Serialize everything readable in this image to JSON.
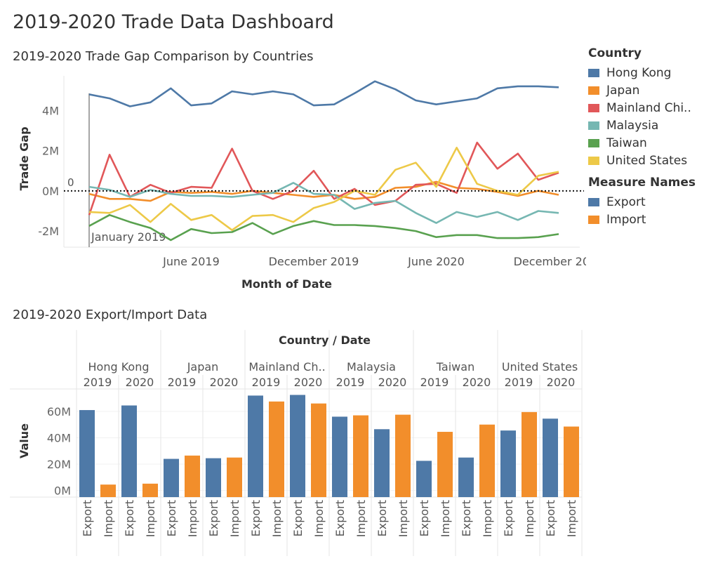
{
  "dashboard": {
    "title": "2019-2020 Trade Data Dashboard"
  },
  "legends": {
    "country": {
      "title": "Country",
      "items": [
        {
          "label": "Hong Kong",
          "color": "#4e79a7"
        },
        {
          "label": "Japan",
          "color": "#f28e2b"
        },
        {
          "label": "Mainland Chi..",
          "color": "#e15759"
        },
        {
          "label": "Malaysia",
          "color": "#76b7b2"
        },
        {
          "label": "Taiwan",
          "color": "#59a14f"
        },
        {
          "label": "United States",
          "color": "#edc948"
        }
      ]
    },
    "measure": {
      "title": "Measure Names",
      "items": [
        {
          "label": "Export",
          "color": "#4e79a7"
        },
        {
          "label": "Import",
          "color": "#f28e2b"
        }
      ]
    }
  },
  "chart_data": [
    {
      "type": "line",
      "title": "2019-2020 Trade Gap Comparison by Countries",
      "xlabel": "Month of Date",
      "ylabel": "Trade Gap",
      "x_range": [
        "2019-01",
        "2020-12"
      ],
      "x_ticks": [
        {
          "x": "2019-06",
          "label": "June 2019"
        },
        {
          "x": "2019-12",
          "label": "December 2019"
        },
        {
          "x": "2020-06",
          "label": "June 2020"
        },
        {
          "x": "2020-12",
          "label": "December 2020"
        }
      ],
      "y_ticks": [
        {
          "value": 4000000,
          "label": "4M"
        },
        {
          "value": 2000000,
          "label": "2M"
        },
        {
          "value": 0,
          "label": "0M"
        },
        {
          "value": -2000000,
          "label": "-2M"
        }
      ],
      "ylim": [
        -2800000,
        6000000
      ],
      "grid": false,
      "reference_line": {
        "value": 0,
        "label": "0",
        "style": "dotted"
      },
      "annotation": {
        "x": "2019-01",
        "label": "January 2019"
      },
      "legend": "right",
      "x": [
        "2019-01",
        "2019-02",
        "2019-03",
        "2019-04",
        "2019-05",
        "2019-06",
        "2019-07",
        "2019-08",
        "2019-09",
        "2019-10",
        "2019-11",
        "2019-12",
        "2020-01",
        "2020-02",
        "2020-03",
        "2020-04",
        "2020-05",
        "2020-06",
        "2020-07",
        "2020-08",
        "2020-09",
        "2020-10",
        "2020-11",
        "2020-12"
      ],
      "series": [
        {
          "name": "Hong Kong",
          "color": "#4e79a7",
          "values": [
            4800000,
            4600000,
            4200000,
            4400000,
            5100000,
            4250000,
            4350000,
            4950000,
            4800000,
            4950000,
            4800000,
            4250000,
            4300000,
            4850000,
            5450000,
            5050000,
            4500000,
            4300000,
            4450000,
            4600000,
            5100000,
            5200000,
            5200000,
            5150000
          ]
        },
        {
          "name": "Japan",
          "color": "#f28e2b",
          "values": [
            -150000,
            -400000,
            -400000,
            -500000,
            -50000,
            -100000,
            -50000,
            -150000,
            0,
            -100000,
            -200000,
            -300000,
            -200000,
            -400000,
            -300000,
            150000,
            200000,
            450000,
            150000,
            100000,
            -50000,
            -250000,
            0,
            -200000
          ]
        },
        {
          "name": "Mainland Chi..",
          "color": "#e15759",
          "values": [
            -1200000,
            1800000,
            -300000,
            300000,
            -100000,
            200000,
            150000,
            2100000,
            0,
            -400000,
            0,
            1000000,
            -400000,
            100000,
            -700000,
            -500000,
            300000,
            350000,
            -100000,
            2400000,
            1100000,
            1850000,
            550000,
            900000
          ]
        },
        {
          "name": "Malaysia",
          "color": "#76b7b2",
          "values": [
            200000,
            50000,
            -300000,
            50000,
            -150000,
            -250000,
            -250000,
            -300000,
            -200000,
            -100000,
            400000,
            -150000,
            -200000,
            -900000,
            -600000,
            -500000,
            -1100000,
            -1600000,
            -1050000,
            -1300000,
            -1050000,
            -1450000,
            -1000000,
            -1100000
          ]
        },
        {
          "name": "Taiwan",
          "color": "#59a14f",
          "values": [
            -1750000,
            -1200000,
            -1550000,
            -1850000,
            -2450000,
            -1900000,
            -2100000,
            -2050000,
            -1600000,
            -2150000,
            -1750000,
            -1500000,
            -1700000,
            -1700000,
            -1750000,
            -1850000,
            -2000000,
            -2300000,
            -2200000,
            -2200000,
            -2350000,
            -2350000,
            -2300000,
            -2150000
          ]
        },
        {
          "name": "United States",
          "color": "#edc948",
          "values": [
            -1050000,
            -1100000,
            -700000,
            -1550000,
            -650000,
            -1450000,
            -1200000,
            -1950000,
            -1250000,
            -1200000,
            -1550000,
            -850000,
            -550000,
            0,
            -200000,
            1050000,
            1400000,
            200000,
            2150000,
            350000,
            0,
            -200000,
            750000,
            950000
          ]
        }
      ]
    },
    {
      "type": "bar",
      "title": "2019-2020 Export/Import Data",
      "header": "Country / Date",
      "ylabel": "Value",
      "xlabel": "",
      "ylim": [
        -5000000,
        77000000
      ],
      "y_ticks": [
        {
          "value": 60000000,
          "label": "60M"
        },
        {
          "value": 40000000,
          "label": "40M"
        },
        {
          "value": 20000000,
          "label": "20M"
        },
        {
          "value": 0,
          "label": "0M"
        }
      ],
      "measures": [
        "Export",
        "Import"
      ],
      "groups": [
        {
          "country": "Hong Kong",
          "years": [
            {
              "year": "2019",
              "export": 61000000,
              "import": 4500000
            },
            {
              "year": "2020",
              "export": 64500000,
              "import": 5200000
            }
          ]
        },
        {
          "country": "Japan",
          "years": [
            {
              "year": "2019",
              "export": 24000000,
              "import": 26500000
            },
            {
              "year": "2020",
              "export": 24500000,
              "import": 25000000
            }
          ]
        },
        {
          "country": "Mainland Ch..",
          "years": [
            {
              "year": "2019",
              "export": 72000000,
              "import": 67500000
            },
            {
              "year": "2020",
              "export": 72500000,
              "import": 66000000
            }
          ]
        },
        {
          "country": "Malaysia",
          "years": [
            {
              "year": "2019",
              "export": 56000000,
              "import": 57000000
            },
            {
              "year": "2020",
              "export": 46500000,
              "import": 57500000
            }
          ]
        },
        {
          "country": "Taiwan",
          "years": [
            {
              "year": "2019",
              "export": 22500000,
              "import": 44500000
            },
            {
              "year": "2020",
              "export": 25000000,
              "import": 50000000
            }
          ]
        },
        {
          "country": "United States",
          "years": [
            {
              "year": "2019",
              "export": 45500000,
              "import": 59500000
            },
            {
              "year": "2020",
              "export": 54500000,
              "import": 48500000
            }
          ]
        }
      ]
    }
  ]
}
